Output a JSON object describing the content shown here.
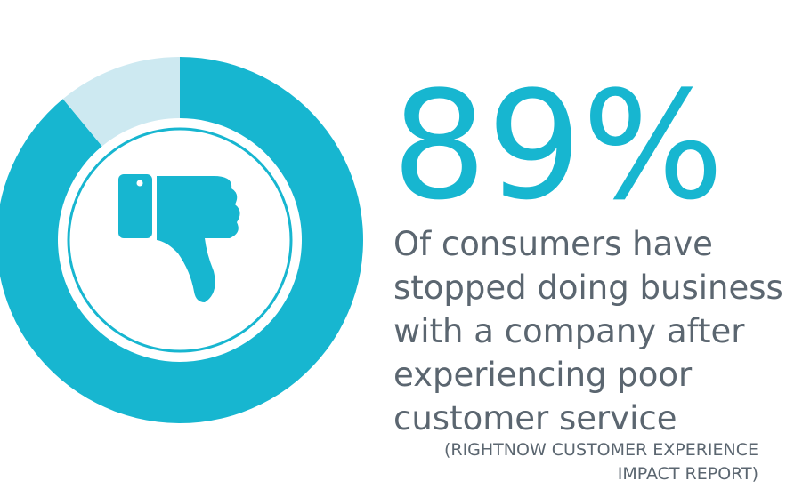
{
  "chart_data": {
    "type": "donut",
    "values": [
      89,
      11
    ],
    "value_labels": [
      "89%",
      null
    ],
    "colors": [
      "#17b6d0",
      "#cde9f1"
    ],
    "description": [
      "Of consumers have",
      "stopped doing business",
      "with a company after",
      "experiencing poor",
      "customer service"
    ],
    "source": [
      "(RIGHTNOW CUSTOMER EXPERIENCE",
      "IMPACT REPORT)"
    ]
  }
}
